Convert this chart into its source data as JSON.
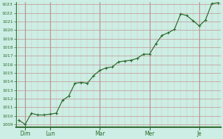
{
  "y_values": [
    1009.5,
    1009.0,
    1010.3,
    1010.1,
    1010.1,
    1010.2,
    1010.3,
    1011.8,
    1012.3,
    1013.8,
    1013.9,
    1013.8,
    1014.7,
    1015.3,
    1015.6,
    1015.7,
    1016.3,
    1016.4,
    1016.5,
    1016.7,
    1017.2,
    1017.2,
    1018.4,
    1019.4,
    1019.7,
    1020.1,
    1021.9,
    1021.7,
    1021.1,
    1020.5,
    1021.2,
    1023.1,
    1023.2
  ],
  "n_points": 33,
  "x_tick_labels": [
    "Dim",
    "Lun",
    "Mar",
    "Mer",
    "Je"
  ],
  "x_tick_positions": [
    1,
    5,
    13,
    21,
    29
  ],
  "y_min": 1009,
  "y_max": 1023,
  "y_ticks": [
    1009,
    1010,
    1011,
    1012,
    1013,
    1014,
    1015,
    1016,
    1017,
    1018,
    1019,
    1020,
    1021,
    1022,
    1023
  ],
  "line_color": "#2d6a2d",
  "marker_color": "#2d6a2d",
  "bg_color": "#cceee4",
  "grid_color": "#c09090",
  "grid_minor_color": "#ddb8b8",
  "spine_color": "#2d6a2d",
  "tick_label_color": "#2d6a2d",
  "line_width": 0.9,
  "marker_size": 2.5,
  "figsize": [
    3.2,
    2.0
  ],
  "dpi": 100
}
